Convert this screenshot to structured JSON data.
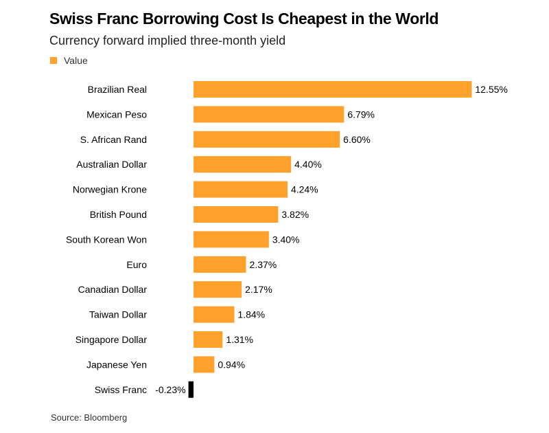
{
  "chart_data": {
    "type": "bar",
    "orientation": "horizontal",
    "title": "Swiss Franc Borrowing Cost Is Cheapest in the World",
    "subtitle": "Currency forward implied three-month yield",
    "categories": [
      "Brazilian Real",
      "Mexican Peso",
      "S. African Rand",
      "Australian Dollar",
      "Norwegian Krone",
      "British Pound",
      "South Korean Won",
      "Euro",
      "Canadian Dollar",
      "Taiwan Dollar",
      "Singapore Dollar",
      "Japanese Yen",
      "Swiss Franc"
    ],
    "series": [
      {
        "name": "Value",
        "values": [
          12.55,
          6.79,
          6.6,
          4.4,
          4.24,
          3.82,
          3.4,
          2.37,
          2.17,
          1.84,
          1.31,
          0.94,
          -0.23
        ],
        "labels": [
          "12.55%",
          "6.79%",
          "6.60%",
          "4.40%",
          "4.24%",
          "3.82%",
          "3.40%",
          "2.37%",
          "2.17%",
          "1.84%",
          "1.31%",
          "0.94%",
          "-0.23%"
        ]
      }
    ],
    "legend": {
      "position": "top-left"
    },
    "grid": false,
    "source": "Source: Bloomberg"
  },
  "colors": {
    "positive": "#ffa12a",
    "negative": "#000000",
    "text": "#000000"
  }
}
